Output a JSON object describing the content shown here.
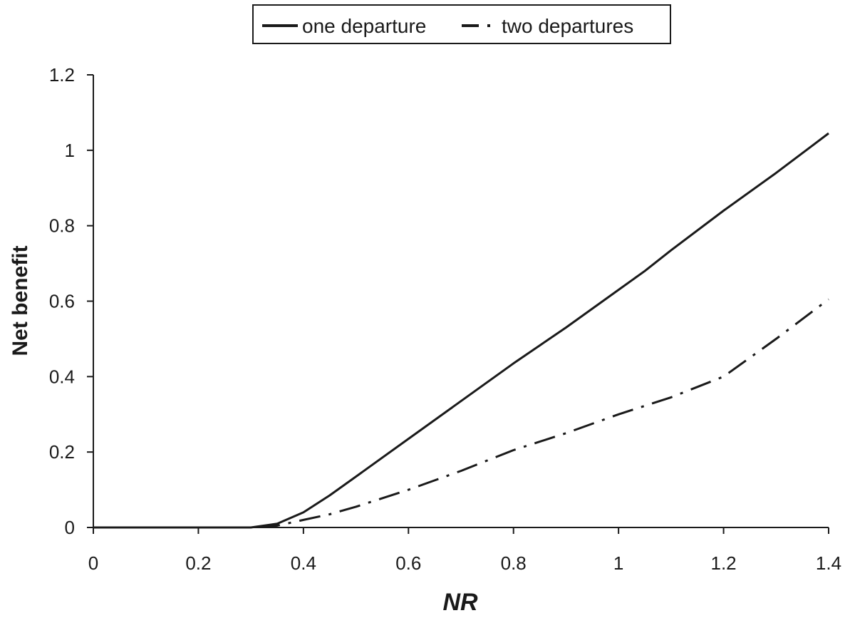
{
  "chart_data": {
    "type": "line",
    "xlabel": "NR",
    "ylabel": "Net benefit",
    "xlim": [
      0,
      1.4
    ],
    "ylim": [
      0,
      1.2
    ],
    "x_ticks": [
      "0",
      "0.2",
      "0.4",
      "0.6",
      "0.8",
      "1",
      "1.2",
      "1.4"
    ],
    "y_ticks": [
      "0",
      "0.2",
      "0.4",
      "0.6",
      "0.8",
      "1",
      "1.2"
    ],
    "grid": false,
    "legend_position": "top",
    "series": [
      {
        "name": "one departure",
        "style": "solid",
        "color": "#1a1a1a",
        "x": [
          0,
          0.1,
          0.2,
          0.3,
          0.35,
          0.4,
          0.45,
          0.5,
          0.6,
          0.7,
          0.8,
          0.9,
          1.0,
          1.05,
          1.1,
          1.2,
          1.3,
          1.4
        ],
        "y": [
          0,
          0,
          0,
          0,
          0.01,
          0.04,
          0.085,
          0.135,
          0.235,
          0.335,
          0.435,
          0.53,
          0.63,
          0.68,
          0.735,
          0.84,
          0.94,
          1.045
        ]
      },
      {
        "name": "two departures",
        "style": "dashed",
        "color": "#1a1a1a",
        "x": [
          0,
          0.1,
          0.2,
          0.3,
          0.35,
          0.4,
          0.45,
          0.5,
          0.6,
          0.7,
          0.8,
          0.9,
          1.0,
          1.1,
          1.2,
          1.3,
          1.4
        ],
        "y": [
          0,
          0,
          0,
          0,
          0.005,
          0.02,
          0.035,
          0.055,
          0.1,
          0.15,
          0.205,
          0.25,
          0.3,
          0.345,
          0.4,
          0.5,
          0.605
        ]
      }
    ]
  }
}
